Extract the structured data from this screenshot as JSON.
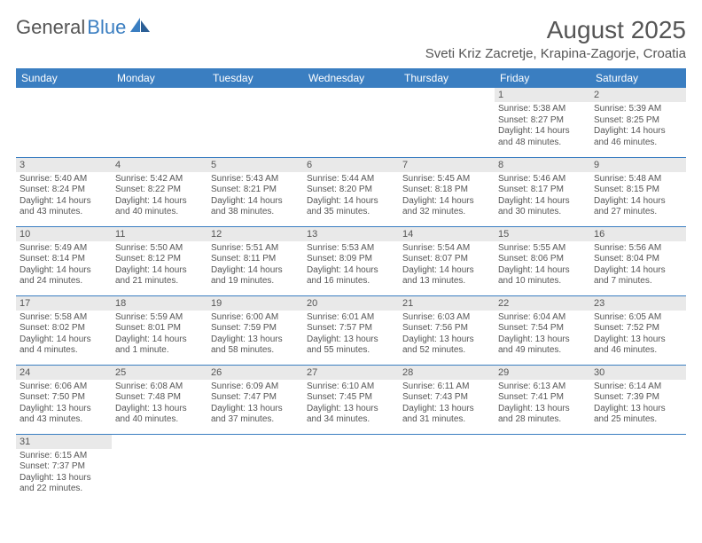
{
  "brand": {
    "part1": "General",
    "part2": "Blue"
  },
  "title": "August 2025",
  "location": "Sveti Kriz Zacretje, Krapina-Zagorje, Croatia",
  "colors": {
    "header_bg": "#3a7ec1",
    "daynum_bg": "#e9e9e9",
    "text": "#555555"
  },
  "weekdays": [
    "Sunday",
    "Monday",
    "Tuesday",
    "Wednesday",
    "Thursday",
    "Friday",
    "Saturday"
  ],
  "days": {
    "1": {
      "sunrise": "5:38 AM",
      "sunset": "8:27 PM",
      "daylight": "14 hours and 48 minutes."
    },
    "2": {
      "sunrise": "5:39 AM",
      "sunset": "8:25 PM",
      "daylight": "14 hours and 46 minutes."
    },
    "3": {
      "sunrise": "5:40 AM",
      "sunset": "8:24 PM",
      "daylight": "14 hours and 43 minutes."
    },
    "4": {
      "sunrise": "5:42 AM",
      "sunset": "8:22 PM",
      "daylight": "14 hours and 40 minutes."
    },
    "5": {
      "sunrise": "5:43 AM",
      "sunset": "8:21 PM",
      "daylight": "14 hours and 38 minutes."
    },
    "6": {
      "sunrise": "5:44 AM",
      "sunset": "8:20 PM",
      "daylight": "14 hours and 35 minutes."
    },
    "7": {
      "sunrise": "5:45 AM",
      "sunset": "8:18 PM",
      "daylight": "14 hours and 32 minutes."
    },
    "8": {
      "sunrise": "5:46 AM",
      "sunset": "8:17 PM",
      "daylight": "14 hours and 30 minutes."
    },
    "9": {
      "sunrise": "5:48 AM",
      "sunset": "8:15 PM",
      "daylight": "14 hours and 27 minutes."
    },
    "10": {
      "sunrise": "5:49 AM",
      "sunset": "8:14 PM",
      "daylight": "14 hours and 24 minutes."
    },
    "11": {
      "sunrise": "5:50 AM",
      "sunset": "8:12 PM",
      "daylight": "14 hours and 21 minutes."
    },
    "12": {
      "sunrise": "5:51 AM",
      "sunset": "8:11 PM",
      "daylight": "14 hours and 19 minutes."
    },
    "13": {
      "sunrise": "5:53 AM",
      "sunset": "8:09 PM",
      "daylight": "14 hours and 16 minutes."
    },
    "14": {
      "sunrise": "5:54 AM",
      "sunset": "8:07 PM",
      "daylight": "14 hours and 13 minutes."
    },
    "15": {
      "sunrise": "5:55 AM",
      "sunset": "8:06 PM",
      "daylight": "14 hours and 10 minutes."
    },
    "16": {
      "sunrise": "5:56 AM",
      "sunset": "8:04 PM",
      "daylight": "14 hours and 7 minutes."
    },
    "17": {
      "sunrise": "5:58 AM",
      "sunset": "8:02 PM",
      "daylight": "14 hours and 4 minutes."
    },
    "18": {
      "sunrise": "5:59 AM",
      "sunset": "8:01 PM",
      "daylight": "14 hours and 1 minute."
    },
    "19": {
      "sunrise": "6:00 AM",
      "sunset": "7:59 PM",
      "daylight": "13 hours and 58 minutes."
    },
    "20": {
      "sunrise": "6:01 AM",
      "sunset": "7:57 PM",
      "daylight": "13 hours and 55 minutes."
    },
    "21": {
      "sunrise": "6:03 AM",
      "sunset": "7:56 PM",
      "daylight": "13 hours and 52 minutes."
    },
    "22": {
      "sunrise": "6:04 AM",
      "sunset": "7:54 PM",
      "daylight": "13 hours and 49 minutes."
    },
    "23": {
      "sunrise": "6:05 AM",
      "sunset": "7:52 PM",
      "daylight": "13 hours and 46 minutes."
    },
    "24": {
      "sunrise": "6:06 AM",
      "sunset": "7:50 PM",
      "daylight": "13 hours and 43 minutes."
    },
    "25": {
      "sunrise": "6:08 AM",
      "sunset": "7:48 PM",
      "daylight": "13 hours and 40 minutes."
    },
    "26": {
      "sunrise": "6:09 AM",
      "sunset": "7:47 PM",
      "daylight": "13 hours and 37 minutes."
    },
    "27": {
      "sunrise": "6:10 AM",
      "sunset": "7:45 PM",
      "daylight": "13 hours and 34 minutes."
    },
    "28": {
      "sunrise": "6:11 AM",
      "sunset": "7:43 PM",
      "daylight": "13 hours and 31 minutes."
    },
    "29": {
      "sunrise": "6:13 AM",
      "sunset": "7:41 PM",
      "daylight": "13 hours and 28 minutes."
    },
    "30": {
      "sunrise": "6:14 AM",
      "sunset": "7:39 PM",
      "daylight": "13 hours and 25 minutes."
    },
    "31": {
      "sunrise": "6:15 AM",
      "sunset": "7:37 PM",
      "daylight": "13 hours and 22 minutes."
    }
  },
  "labels": {
    "sunrise": "Sunrise: ",
    "sunset": "Sunset: ",
    "daylight": "Daylight: "
  },
  "grid": {
    "first_weekday_index": 5,
    "num_days": 31
  }
}
